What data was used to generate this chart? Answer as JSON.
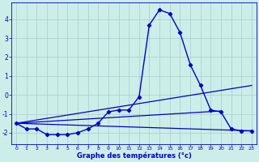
{
  "title": "Graphe des températures (°c)",
  "background_color": "#cceee8",
  "grid_color": "#aacccc",
  "line_color": "#0000cc",
  "xlim": [
    -0.5,
    23.5
  ],
  "ylim": [
    -2.6,
    4.9
  ],
  "yticks": [
    -2,
    -1,
    0,
    1,
    2,
    3,
    4
  ],
  "xticks": [
    0,
    1,
    2,
    3,
    4,
    5,
    6,
    7,
    8,
    9,
    10,
    11,
    12,
    13,
    14,
    15,
    16,
    17,
    18,
    19,
    20,
    21,
    22,
    23
  ],
  "series": [
    {
      "x": [
        0,
        1,
        2,
        3,
        4,
        5,
        6,
        7,
        8,
        9,
        10,
        11,
        12,
        13,
        14,
        15,
        16,
        17,
        18,
        19,
        20,
        21,
        22,
        23
      ],
      "y": [
        -1.5,
        -1.8,
        -1.8,
        -2.1,
        -2.1,
        -2.1,
        -2.0,
        -1.8,
        -1.5,
        -0.9,
        -0.8,
        -0.8,
        -0.1,
        3.7,
        4.5,
        4.3,
        3.3,
        1.6,
        0.5,
        -0.8,
        -0.9,
        -1.8,
        -1.9,
        -1.9
      ],
      "marker": "D",
      "markersize": 2.2,
      "linewidth": 1.0,
      "has_marker": true
    },
    {
      "x": [
        0,
        23
      ],
      "y": [
        -1.5,
        -1.9
      ],
      "linewidth": 0.9,
      "has_marker": false
    },
    {
      "x": [
        0,
        23
      ],
      "y": [
        -1.5,
        0.5
      ],
      "linewidth": 0.9,
      "has_marker": false
    },
    {
      "x": [
        0,
        20
      ],
      "y": [
        -1.5,
        -0.85
      ],
      "linewidth": 0.9,
      "has_marker": false
    }
  ]
}
